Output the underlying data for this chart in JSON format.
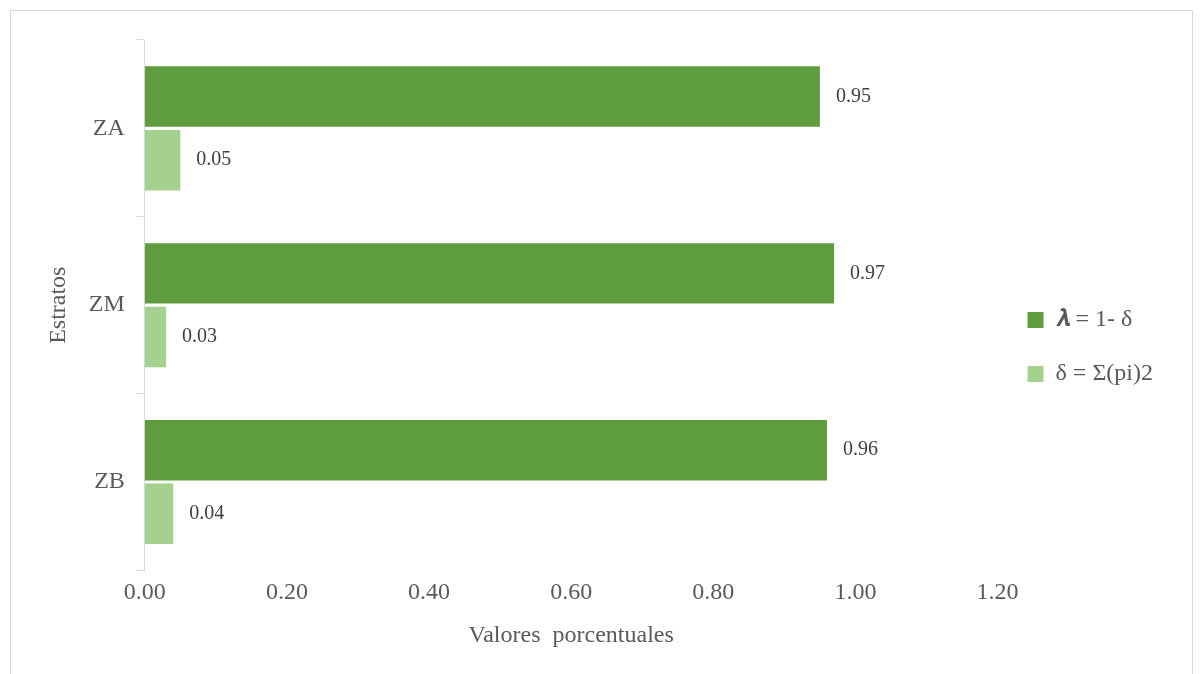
{
  "chart_data": {
    "type": "bar",
    "orientation": "horizontal",
    "xlabel": "Valores  porcentuales",
    "ylabel": "Estratos",
    "categories": [
      "ZA",
      "ZM",
      "ZB"
    ],
    "series": [
      {
        "name": "𝝀 = 1- δ",
        "color": "#5e9c3e",
        "values": [
          0.95,
          0.97,
          0.96
        ]
      },
      {
        "name": "δ = Σ(pi)2",
        "color": "#a5d18e",
        "values": [
          0.05,
          0.03,
          0.04
        ]
      }
    ],
    "xlim": [
      0,
      1.2
    ],
    "xticks": [
      {
        "value": 0,
        "label": "0.00"
      },
      {
        "value": 0.2,
        "label": "0.20"
      },
      {
        "value": 0.4,
        "label": "0.40"
      },
      {
        "value": 0.6,
        "label": "0.60"
      },
      {
        "value": 0.8,
        "label": "0.80"
      },
      {
        "value": 1,
        "label": "1.00"
      },
      {
        "value": 1.2,
        "label": "1.20"
      }
    ],
    "grid": false,
    "legend": "right",
    "data_labels": true
  }
}
